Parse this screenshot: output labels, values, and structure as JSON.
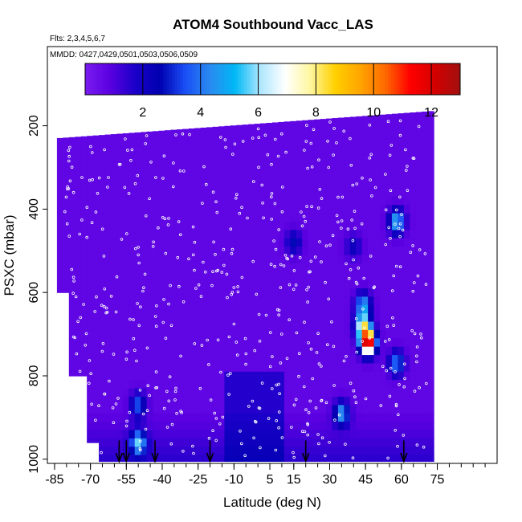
{
  "figure": {
    "title": "ATOM4 Southbound Vacc_LAS",
    "flights_note": "Flts: 2,3,4,5,6,7",
    "dates_note": "MMDD: 0427,0429,0501,0503,0506,0509"
  },
  "colors": {
    "scale": [
      "#7a1cf0",
      "#5a00e0",
      "#1a00c8",
      "#0000b0",
      "#1a4ff5",
      "#2a8af0",
      "#00b8f5",
      "#aee6ff",
      "#ffffff",
      "#fff7a0",
      "#ffd000",
      "#ffa500",
      "#ff6a00",
      "#ff0000",
      "#d40000",
      "#a01010"
    ],
    "background_fill": "#8a2be2",
    "marker": "#ffffff",
    "arrow": "#000000"
  },
  "chart_data": {
    "type": "heatmap",
    "title": "ATOM4 Southbound Vacc_LAS",
    "xlabel": "Latitude (deg N)",
    "ylabel": "PSXC (mbar)",
    "xlim": [
      -88,
      100
    ],
    "ylim": [
      1010,
      10
    ],
    "x_ticks": [
      -85,
      -70,
      -55,
      -40,
      -25,
      -10,
      5,
      15,
      30,
      45,
      60,
      75
    ],
    "y_ticks": [
      200,
      400,
      600,
      800,
      1000
    ],
    "colorbar": {
      "range": [
        0,
        13
      ],
      "ticks": [
        2,
        4,
        6,
        8,
        10,
        12
      ],
      "orientation": "horizontal",
      "placement": "top"
    },
    "hotspots": [
      {
        "lat": 46,
        "pres": 720,
        "value": 12
      },
      {
        "lat": 44,
        "pres": 680,
        "value": 6.5
      },
      {
        "lat": 44,
        "pres": 630,
        "value": 4
      },
      {
        "lat": 35,
        "pres": 890,
        "value": 4
      },
      {
        "lat": 58,
        "pres": 430,
        "value": 4.5
      },
      {
        "lat": 58,
        "pres": 770,
        "value": 3.5
      },
      {
        "lat": -50,
        "pres": 960,
        "value": 4.5
      },
      {
        "lat": -50,
        "pres": 870,
        "value": 3
      },
      {
        "lat": 15,
        "pres": 480,
        "value": 2
      },
      {
        "lat": 40,
        "pres": 490,
        "value": 1.6
      }
    ],
    "arrows_lat": [
      -58,
      -55,
      -43,
      -20,
      20,
      61
    ],
    "data_coverage": {
      "lat_range": [
        -84,
        72
      ],
      "top_pres_south": 230,
      "top_pres_north": 165,
      "bottom_pres": 1005
    }
  }
}
